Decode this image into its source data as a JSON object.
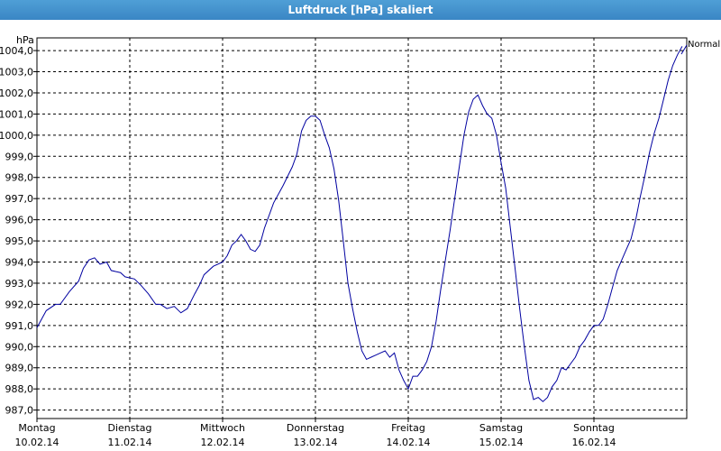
{
  "window": {
    "title": "Luftdruck [hPa] skaliert"
  },
  "chart_data": {
    "type": "line",
    "unit_label": "hPa",
    "legend": "Normal",
    "ylim": [
      986.6,
      1004.6
    ],
    "y_ticks": [
      "987,0",
      "988,0",
      "989,0",
      "990,0",
      "991,0",
      "992,0",
      "993,0",
      "994,0",
      "995,0",
      "996,0",
      "997,0",
      "998,0",
      "999,0",
      "1000,0",
      "1001,0",
      "1002,0",
      "1003,0",
      "1004,0"
    ],
    "x_categories": [
      {
        "day": "Montag",
        "date": "10.02.14"
      },
      {
        "day": "Dienstag",
        "date": "11.02.14"
      },
      {
        "day": "Mittwoch",
        "date": "12.02.14"
      },
      {
        "day": "Donnerstag",
        "date": "13.02.14"
      },
      {
        "day": "Freitag",
        "date": "14.02.14"
      },
      {
        "day": "Samstag",
        "date": "15.02.14"
      },
      {
        "day": "Sonntag",
        "date": "16.02.14"
      }
    ],
    "xlim": [
      0,
      7.0
    ],
    "grid": true,
    "series": [
      {
        "color": "#0000a0",
        "points": [
          [
            0.0,
            990.9
          ],
          [
            0.1,
            991.7
          ],
          [
            0.2,
            992.0
          ],
          [
            0.25,
            992.0
          ],
          [
            0.35,
            992.6
          ],
          [
            0.45,
            993.1
          ],
          [
            0.5,
            993.7
          ],
          [
            0.56,
            994.1
          ],
          [
            0.62,
            994.2
          ],
          [
            0.68,
            993.9
          ],
          [
            0.75,
            994.0
          ],
          [
            0.8,
            993.6
          ],
          [
            0.9,
            993.5
          ],
          [
            0.95,
            993.3
          ],
          [
            1.05,
            993.2
          ],
          [
            1.12,
            992.9
          ],
          [
            1.2,
            992.5
          ],
          [
            1.28,
            992.0
          ],
          [
            1.33,
            992.0
          ],
          [
            1.4,
            991.8
          ],
          [
            1.48,
            991.9
          ],
          [
            1.55,
            991.6
          ],
          [
            1.62,
            991.8
          ],
          [
            1.7,
            992.5
          ],
          [
            1.75,
            992.9
          ],
          [
            1.8,
            993.4
          ],
          [
            1.9,
            993.8
          ],
          [
            2.0,
            994.0
          ],
          [
            2.05,
            994.3
          ],
          [
            2.1,
            994.8
          ],
          [
            2.15,
            995.0
          ],
          [
            2.2,
            995.3
          ],
          [
            2.25,
            995.0
          ],
          [
            2.3,
            994.6
          ],
          [
            2.35,
            994.5
          ],
          [
            2.4,
            994.8
          ],
          [
            2.45,
            995.6
          ],
          [
            2.55,
            996.8
          ],
          [
            2.65,
            997.6
          ],
          [
            2.75,
            998.5
          ],
          [
            2.8,
            999.1
          ],
          [
            2.85,
            1000.2
          ],
          [
            2.9,
            1000.7
          ],
          [
            2.95,
            1000.9
          ],
          [
            3.0,
            1000.9
          ],
          [
            3.05,
            1000.7
          ],
          [
            3.1,
            1000.0
          ],
          [
            3.15,
            999.4
          ],
          [
            3.2,
            998.4
          ],
          [
            3.25,
            996.9
          ],
          [
            3.3,
            995.0
          ],
          [
            3.35,
            993.0
          ],
          [
            3.4,
            991.8
          ],
          [
            3.45,
            990.7
          ],
          [
            3.5,
            989.8
          ],
          [
            3.55,
            989.4
          ],
          [
            3.6,
            989.5
          ],
          [
            3.65,
            989.6
          ],
          [
            3.7,
            989.7
          ],
          [
            3.75,
            989.8
          ],
          [
            3.8,
            989.5
          ],
          [
            3.85,
            989.7
          ],
          [
            3.9,
            988.9
          ],
          [
            3.95,
            988.4
          ],
          [
            4.0,
            988.0
          ],
          [
            4.05,
            988.6
          ],
          [
            4.1,
            988.6
          ],
          [
            4.15,
            988.9
          ],
          [
            4.2,
            989.3
          ],
          [
            4.25,
            990.0
          ],
          [
            4.3,
            991.2
          ],
          [
            4.35,
            992.7
          ],
          [
            4.4,
            994.1
          ],
          [
            4.45,
            995.5
          ],
          [
            4.5,
            997.0
          ],
          [
            4.55,
            998.5
          ],
          [
            4.6,
            1000.0
          ],
          [
            4.65,
            1001.1
          ],
          [
            4.7,
            1001.7
          ],
          [
            4.75,
            1001.9
          ],
          [
            4.8,
            1001.4
          ],
          [
            4.85,
            1001.0
          ],
          [
            4.9,
            1000.8
          ],
          [
            4.95,
            1000.0
          ],
          [
            5.0,
            998.7
          ],
          [
            5.05,
            997.5
          ],
          [
            5.1,
            995.6
          ],
          [
            5.15,
            993.7
          ],
          [
            5.2,
            991.8
          ],
          [
            5.25,
            990.0
          ],
          [
            5.3,
            988.4
          ],
          [
            5.35,
            987.5
          ],
          [
            5.4,
            987.6
          ],
          [
            5.45,
            987.4
          ],
          [
            5.5,
            987.6
          ],
          [
            5.55,
            988.1
          ],
          [
            5.6,
            988.4
          ],
          [
            5.65,
            989.0
          ],
          [
            5.7,
            988.9
          ],
          [
            5.75,
            989.2
          ],
          [
            5.8,
            989.5
          ],
          [
            5.85,
            990.0
          ],
          [
            5.9,
            990.3
          ],
          [
            5.95,
            990.7
          ],
          [
            6.0,
            991.0
          ],
          [
            6.05,
            991.0
          ],
          [
            6.1,
            991.3
          ],
          [
            6.15,
            992.0
          ],
          [
            6.2,
            992.8
          ],
          [
            6.25,
            993.6
          ],
          [
            6.3,
            994.1
          ],
          [
            6.35,
            994.6
          ],
          [
            6.4,
            995.1
          ],
          [
            6.45,
            996.0
          ],
          [
            6.5,
            997.1
          ],
          [
            6.55,
            998.1
          ],
          [
            6.6,
            999.2
          ],
          [
            6.65,
            1000.1
          ],
          [
            6.7,
            1000.8
          ],
          [
            6.75,
            1001.7
          ],
          [
            6.8,
            1002.6
          ],
          [
            6.85,
            1003.3
          ],
          [
            6.9,
            1003.8
          ],
          [
            6.95,
            1004.2
          ]
        ]
      }
    ]
  }
}
